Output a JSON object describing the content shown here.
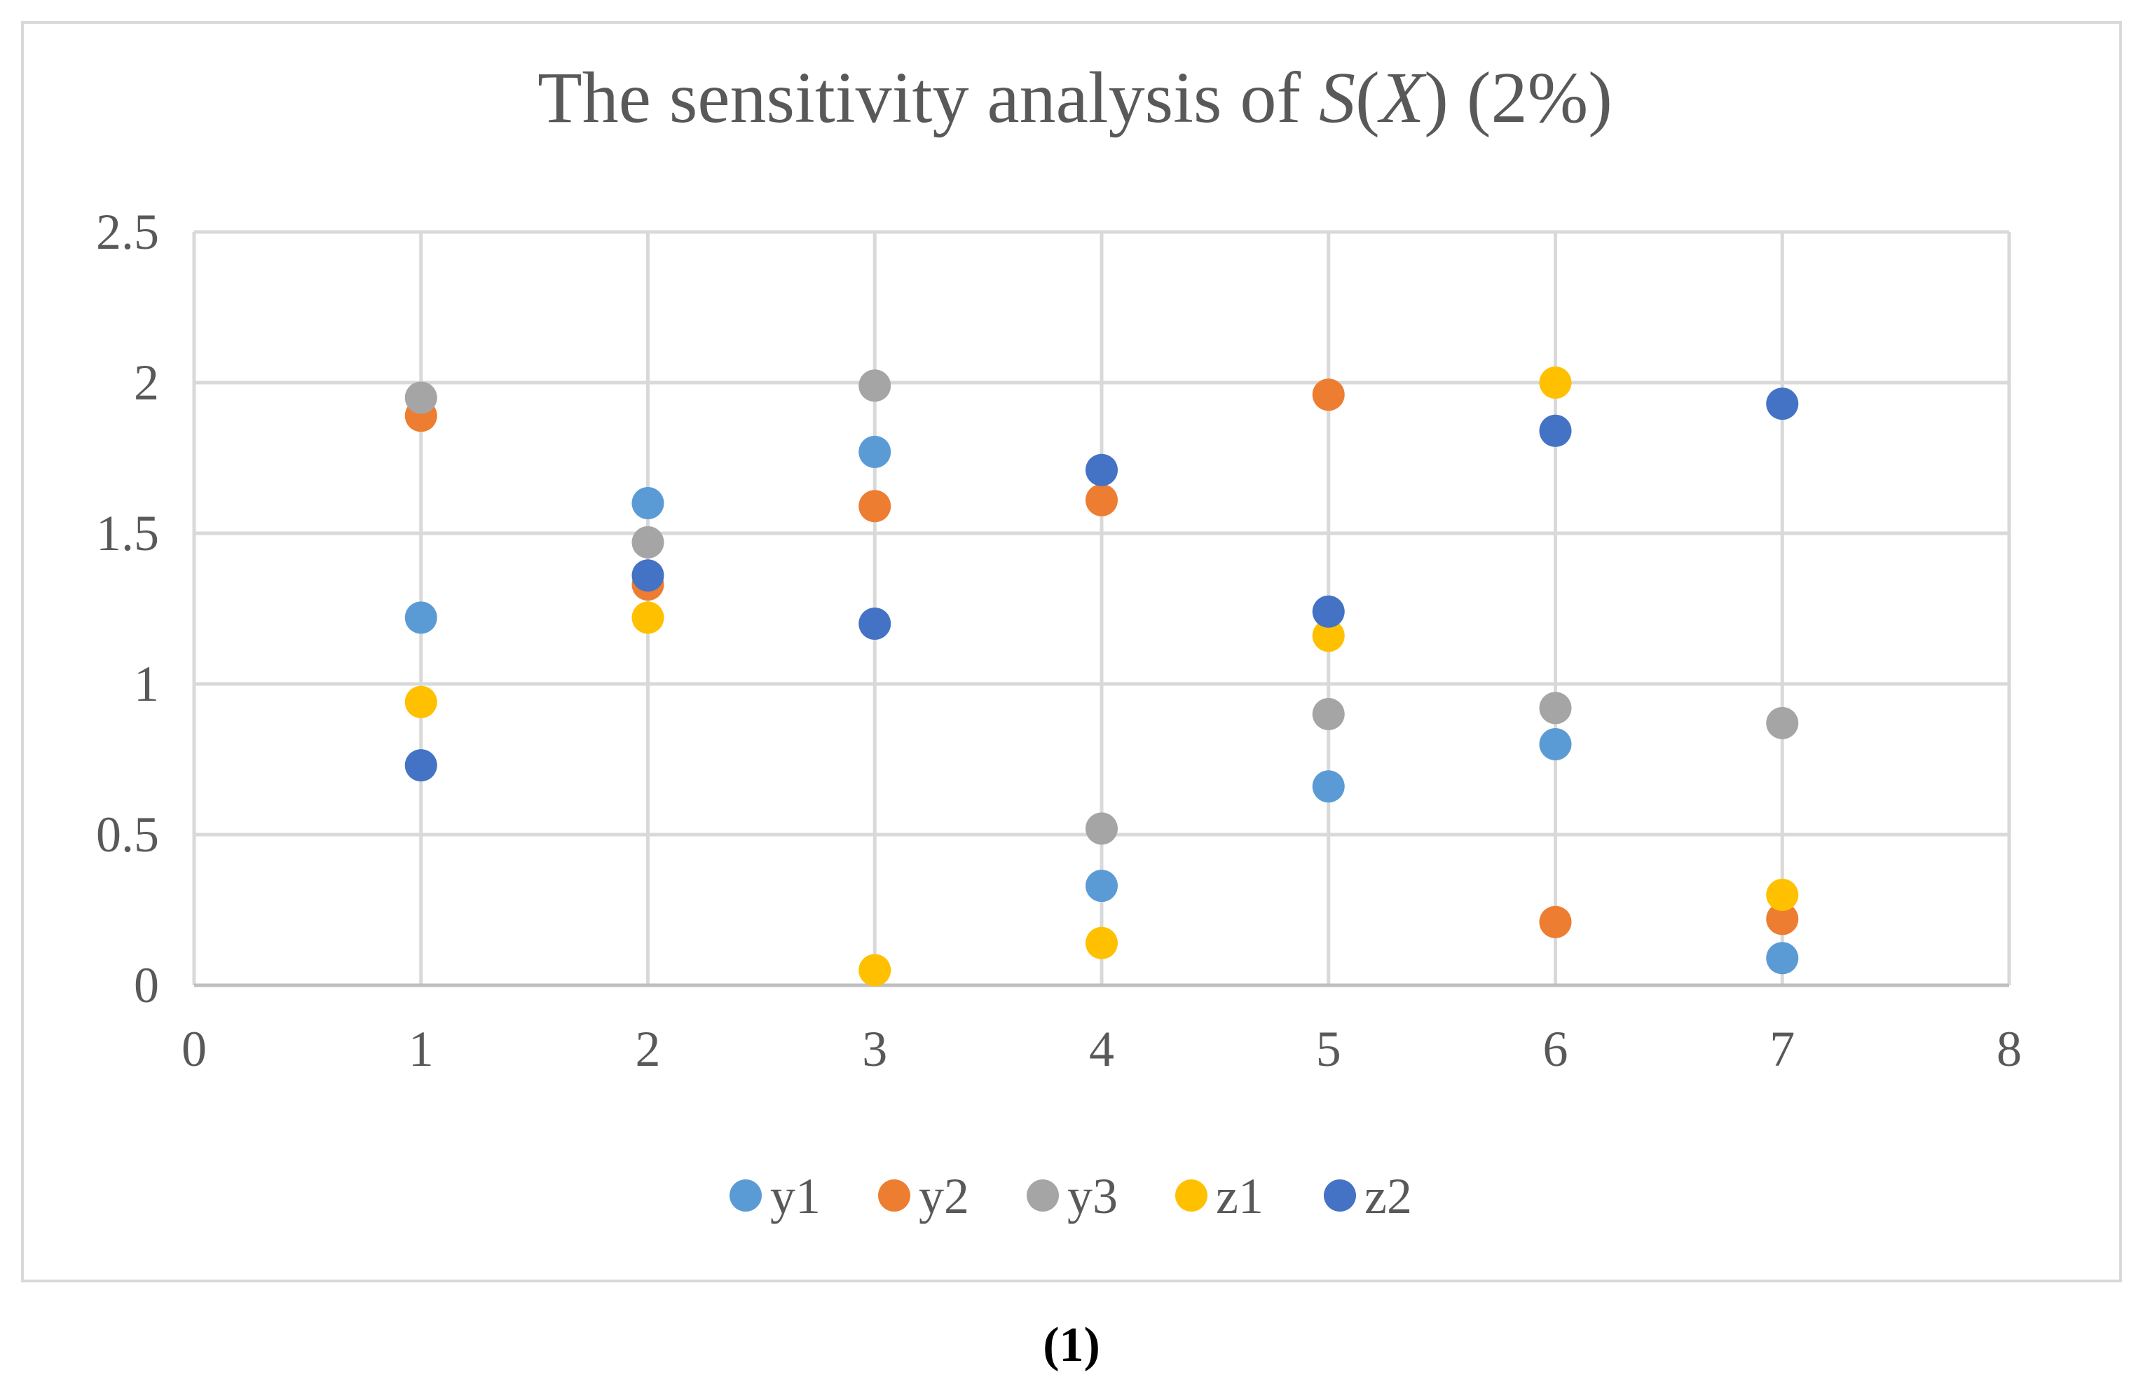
{
  "chart_data": {
    "type": "scatter",
    "title_prefix": "The sensitivity analysis of ",
    "title_italic": "S",
    "title_paren_open": "(",
    "title_italic_x": "X",
    "title_suffix": ") (2%)",
    "xlabel": "",
    "ylabel": "",
    "xlim": [
      0,
      8
    ],
    "ylim": [
      0,
      2.5
    ],
    "x_ticks": [
      "0",
      "1",
      "2",
      "3",
      "4",
      "5",
      "6",
      "7",
      "8"
    ],
    "y_ticks": [
      "0",
      "0.5",
      "1",
      "1.5",
      "2",
      "2.5"
    ],
    "grid": true,
    "legend_position": "bottom",
    "series": [
      {
        "name": "y1",
        "color": "#5b9bd5",
        "points": [
          [
            1,
            1.22
          ],
          [
            2,
            1.6
          ],
          [
            3,
            1.77
          ],
          [
            4,
            0.33
          ],
          [
            5,
            0.66
          ],
          [
            6,
            0.8
          ],
          [
            7,
            0.09
          ]
        ]
      },
      {
        "name": "y2",
        "color": "#ed7d31",
        "points": [
          [
            1,
            1.89
          ],
          [
            2,
            1.33
          ],
          [
            3,
            1.59
          ],
          [
            4,
            1.61
          ],
          [
            5,
            1.96
          ],
          [
            6,
            0.21
          ],
          [
            7,
            0.22
          ]
        ]
      },
      {
        "name": "y3",
        "color": "#a5a5a5",
        "points": [
          [
            1,
            1.95
          ],
          [
            2,
            1.47
          ],
          [
            3,
            1.99
          ],
          [
            4,
            0.52
          ],
          [
            5,
            0.9
          ],
          [
            6,
            0.92
          ],
          [
            7,
            0.87
          ]
        ]
      },
      {
        "name": "z1",
        "color": "#ffc000",
        "points": [
          [
            1,
            0.94
          ],
          [
            2,
            1.22
          ],
          [
            3,
            0.05
          ],
          [
            4,
            0.14
          ],
          [
            5,
            1.16
          ],
          [
            6,
            2.0
          ],
          [
            7,
            0.3
          ]
        ]
      },
      {
        "name": "z2",
        "color": "#4472c4",
        "points": [
          [
            1,
            0.73
          ],
          [
            2,
            1.36
          ],
          [
            3,
            1.2
          ],
          [
            4,
            1.71
          ],
          [
            5,
            1.24
          ],
          [
            6,
            1.84
          ],
          [
            7,
            1.93
          ]
        ]
      }
    ]
  },
  "caption": "(1)"
}
